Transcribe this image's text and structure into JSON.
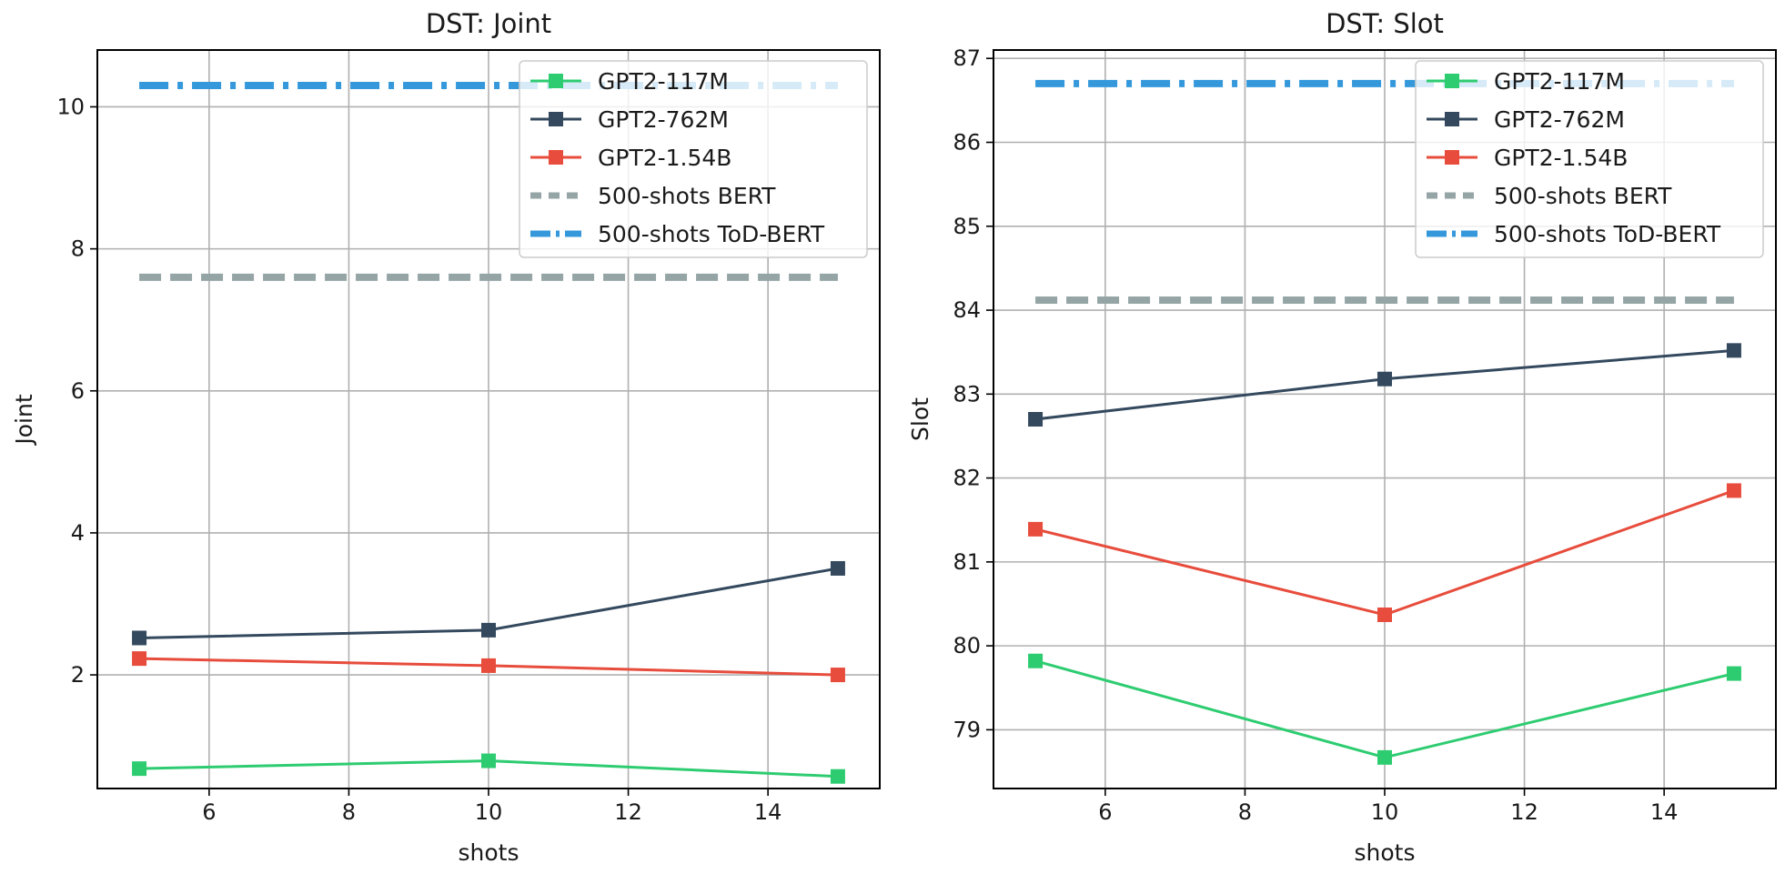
{
  "chart_data": [
    {
      "type": "line",
      "title": "DST: Joint",
      "xlabel": "shots",
      "ylabel": "Joint",
      "xlim": [
        4.4,
        15.6
      ],
      "ylim": [
        0.4,
        10.8
      ],
      "xticks": [
        6,
        8,
        10,
        12,
        14
      ],
      "yticks": [
        2,
        4,
        6,
        8,
        10
      ],
      "grid": true,
      "legend_position": "top-right",
      "x": [
        5,
        10,
        15
      ],
      "series": [
        {
          "name": "GPT2-117M",
          "values": [
            0.68,
            0.79,
            0.57
          ],
          "color": "#2ecc71",
          "style": "solid",
          "marker": "square"
        },
        {
          "name": "GPT2-762M",
          "values": [
            2.52,
            2.63,
            3.5
          ],
          "color": "#34495e",
          "style": "solid",
          "marker": "square"
        },
        {
          "name": "GPT2-1.54B",
          "values": [
            2.23,
            2.13,
            2.0
          ],
          "color": "#e74c3c",
          "style": "solid",
          "marker": "square"
        }
      ],
      "reference_lines": [
        {
          "name": "500-shots BERT",
          "value": 7.6,
          "color": "#95a5a6",
          "style": "dashed"
        },
        {
          "name": "500-shots ToD-BERT",
          "value": 10.3,
          "color": "#3498db",
          "style": "dashdot"
        }
      ]
    },
    {
      "type": "line",
      "title": "DST: Slot",
      "xlabel": "shots",
      "ylabel": "Slot",
      "xlim": [
        4.4,
        15.6
      ],
      "ylim": [
        78.3,
        87.1
      ],
      "xticks": [
        6,
        8,
        10,
        12,
        14
      ],
      "yticks": [
        79,
        80,
        81,
        82,
        83,
        84,
        85,
        86,
        87
      ],
      "grid": true,
      "legend_position": "top-right",
      "x": [
        5,
        10,
        15
      ],
      "series": [
        {
          "name": "GPT2-117M",
          "values": [
            79.82,
            78.67,
            79.67
          ],
          "color": "#2ecc71",
          "style": "solid",
          "marker": "square"
        },
        {
          "name": "GPT2-762M",
          "values": [
            82.7,
            83.18,
            83.52
          ],
          "color": "#34495e",
          "style": "solid",
          "marker": "square"
        },
        {
          "name": "GPT2-1.54B",
          "values": [
            81.39,
            80.37,
            81.85
          ],
          "color": "#e74c3c",
          "style": "solid",
          "marker": "square"
        }
      ],
      "reference_lines": [
        {
          "name": "500-shots BERT",
          "value": 84.12,
          "color": "#95a5a6",
          "style": "dashed"
        },
        {
          "name": "500-shots ToD-BERT",
          "value": 86.7,
          "color": "#3498db",
          "style": "dashdot"
        }
      ]
    }
  ]
}
